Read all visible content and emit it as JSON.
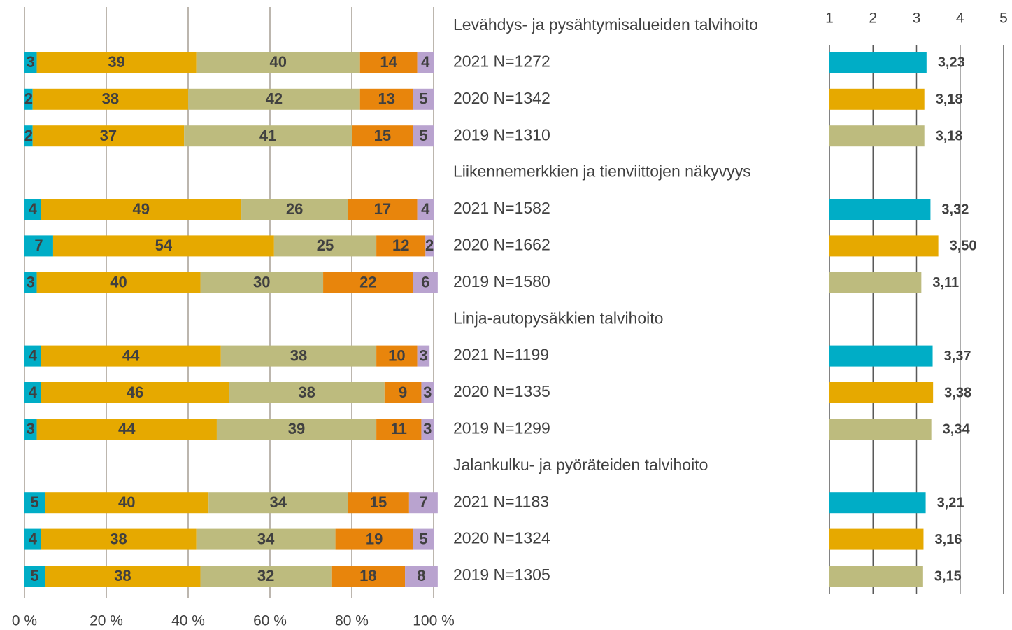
{
  "chart_data": [
    {
      "type": "stacked_bar_h",
      "categories": [
        "Levähdys- ja pysähtymisalueiden talvihoito",
        "2021 N=1272",
        "2020 N=1342",
        "2019 N=1310",
        "Liikennemerkkien ja tienviittojen näkyvyys",
        "2021 N=1582",
        "2020 N=1662",
        "2019 N=1580",
        "Linja-autopysäkkien talvihoito",
        "2021 N=1199",
        "2020 N=1335",
        "2019 N=1299",
        "Jalankulku- ja pyöräteiden talvihoito",
        "2021 N=1183",
        "2020 N=1324",
        "2019 N=1305"
      ],
      "series": [
        {
          "color": "#00adc6",
          "values": [
            null,
            3,
            2,
            2,
            null,
            4,
            7,
            3,
            null,
            4,
            4,
            3,
            null,
            5,
            4,
            5
          ]
        },
        {
          "color": "#e6a900",
          "values": [
            null,
            39,
            38,
            37,
            null,
            49,
            54,
            40,
            null,
            44,
            46,
            44,
            null,
            40,
            38,
            38
          ]
        },
        {
          "color": "#bdbb7e",
          "values": [
            null,
            40,
            42,
            41,
            null,
            26,
            25,
            30,
            null,
            38,
            38,
            39,
            null,
            34,
            34,
            32
          ]
        },
        {
          "color": "#e8850c",
          "values": [
            null,
            14,
            13,
            15,
            null,
            17,
            12,
            22,
            null,
            10,
            9,
            11,
            null,
            15,
            19,
            18
          ]
        },
        {
          "color": "#b9a3cf",
          "values": [
            null,
            4,
            5,
            5,
            null,
            4,
            2,
            6,
            null,
            3,
            3,
            3,
            null,
            7,
            5,
            8
          ]
        }
      ],
      "xlim": [
        0,
        100
      ],
      "xticks": [
        {
          "value": 0,
          "label": "0 %"
        },
        {
          "value": 20,
          "label": "20 %"
        },
        {
          "value": 40,
          "label": "40 %"
        },
        {
          "value": 60,
          "label": "60 %"
        },
        {
          "value": 80,
          "label": "80 %"
        },
        {
          "value": 100,
          "label": "100 %"
        }
      ],
      "grid": true
    },
    {
      "type": "bar_h",
      "values": [
        null,
        3.23,
        3.18,
        3.18,
        null,
        3.32,
        3.5,
        3.11,
        null,
        3.37,
        3.38,
        3.34,
        null,
        3.21,
        3.16,
        3.15
      ],
      "value_labels": [
        null,
        "3,23",
        "3,18",
        "3,18",
        null,
        "3,32",
        "3,50",
        "3,11",
        null,
        "3,37",
        "3,38",
        "3,34",
        null,
        "3,21",
        "3,16",
        "3,15"
      ],
      "colors": [
        null,
        "#00adc6",
        "#e6a900",
        "#bdbb7e",
        null,
        "#00adc6",
        "#e6a900",
        "#bdbb7e",
        null,
        "#00adc6",
        "#e6a900",
        "#bdbb7e",
        null,
        "#00adc6",
        "#e6a900",
        "#bdbb7e"
      ],
      "xlim": [
        1,
        5
      ],
      "xticks": [
        1,
        2,
        3,
        4,
        5
      ],
      "grid": true
    }
  ]
}
